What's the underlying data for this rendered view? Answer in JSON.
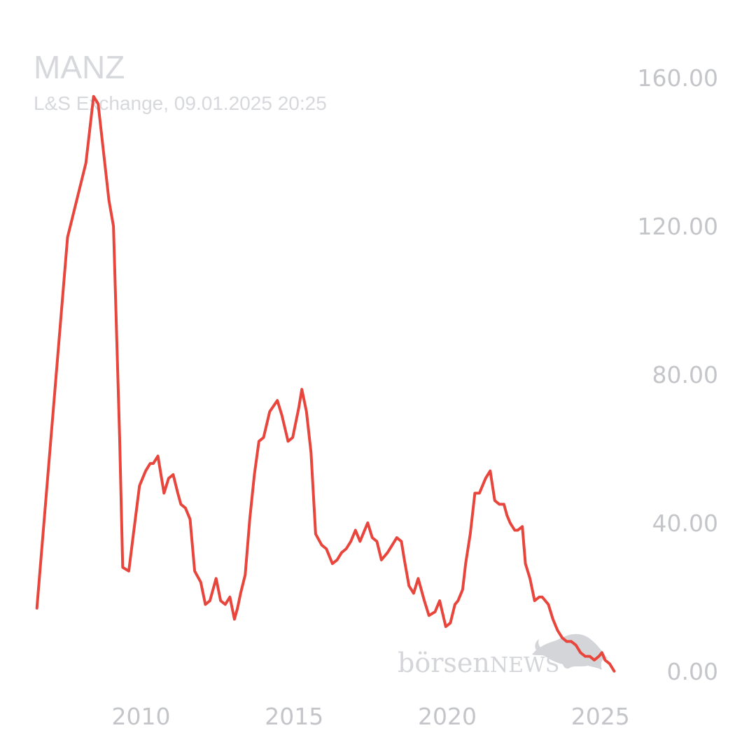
{
  "header": {
    "symbol": "MANZ",
    "subtitle": "L&S Exchange, 09.01.2025 20:25"
  },
  "watermark": {
    "brand_lower": "börsen",
    "brand_upper": "NEWS",
    "icon": "bull-icon"
  },
  "colors": {
    "line": "#e8453c",
    "tick_text": "#c3c5c9",
    "header_text": "#d6d8dc",
    "watermark": "#d3d5d8"
  },
  "chart_data": {
    "type": "line",
    "title": "",
    "xlabel": "",
    "ylabel": "",
    "grid": false,
    "legend": "none",
    "xlim": [
      2006.4,
      2025.6
    ],
    "ylim": [
      -4,
      164
    ],
    "x_ticks": [
      {
        "value": 2010,
        "label": "2010"
      },
      {
        "value": 2015,
        "label": "2015"
      },
      {
        "value": 2020,
        "label": "2020"
      },
      {
        "value": 2025,
        "label": "2025"
      }
    ],
    "y_ticks": [
      {
        "value": 160,
        "label": "160.00"
      },
      {
        "value": 120,
        "label": "120.00"
      },
      {
        "value": 80,
        "label": "80.00"
      },
      {
        "value": 40,
        "label": "40.00"
      },
      {
        "value": 0,
        "label": "0.00"
      }
    ],
    "series": [
      {
        "x": [
          2006.6,
          2007.6,
          2008.2,
          2008.45,
          2008.6,
          2008.95,
          2009.1,
          2009.3,
          2009.4,
          2009.6,
          2009.75,
          2009.95,
          2010.15,
          2010.3,
          2010.4,
          2010.55,
          2010.75,
          2010.9,
          2011.05,
          2011.2,
          2011.3,
          2011.45,
          2011.6,
          2011.75,
          2011.95,
          2012.1,
          2012.25,
          2012.45,
          2012.6,
          2012.75,
          2012.9,
          2013.05,
          2013.15,
          2013.25,
          2013.4,
          2013.55,
          2013.7,
          2013.85,
          2014.0,
          2014.2,
          2014.45,
          2014.6,
          2014.8,
          2014.95,
          2015.15,
          2015.25,
          2015.4,
          2015.55,
          2015.7,
          2015.9,
          2016.05,
          2016.25,
          2016.4,
          2016.55,
          2016.7,
          2016.85,
          2017.0,
          2017.15,
          2017.25,
          2017.4,
          2017.55,
          2017.7,
          2017.85,
          2018.05,
          2018.2,
          2018.35,
          2018.5,
          2018.6,
          2018.75,
          2018.9,
          2019.05,
          2019.25,
          2019.4,
          2019.6,
          2019.75,
          2019.95,
          2020.1,
          2020.25,
          2020.35,
          2020.5,
          2020.6,
          2020.75,
          2020.9,
          2021.05,
          2021.25,
          2021.4,
          2021.55,
          2021.7,
          2021.85,
          2021.95,
          2022.05,
          2022.2,
          2022.3,
          2022.45,
          2022.55,
          2022.7,
          2022.85,
          2023.0,
          2023.1,
          2023.3,
          2023.45,
          2023.6,
          2023.75,
          2023.9,
          2024.05,
          2024.2,
          2024.35,
          2024.5,
          2024.65,
          2024.8,
          2024.95,
          2025.05,
          2025.15,
          2025.3,
          2025.45
        ],
        "y": [
          17,
          117,
          137,
          155,
          153,
          127,
          120,
          63,
          28,
          27,
          37,
          50,
          54,
          56,
          56,
          58,
          48,
          52,
          53,
          48,
          45,
          44,
          41,
          27,
          24,
          18,
          19,
          25,
          19,
          18,
          20,
          14,
          17,
          21,
          26,
          41,
          53,
          62,
          63,
          70,
          73,
          69,
          62,
          63,
          71,
          76,
          70,
          59,
          37,
          34,
          33,
          29,
          30,
          32,
          33,
          35,
          38,
          35,
          37,
          40,
          36,
          35,
          30,
          32,
          34,
          36,
          35,
          30,
          23,
          21,
          25,
          19,
          15,
          16,
          19,
          12,
          13,
          18,
          19,
          22,
          29,
          37,
          48,
          48,
          52,
          54,
          46,
          45,
          45,
          42,
          40,
          38,
          38,
          39,
          29,
          25,
          19,
          20,
          20,
          18,
          14,
          11,
          9,
          8,
          8,
          7,
          5,
          4,
          4,
          3,
          4,
          5,
          3,
          2,
          0
        ]
      }
    ]
  }
}
